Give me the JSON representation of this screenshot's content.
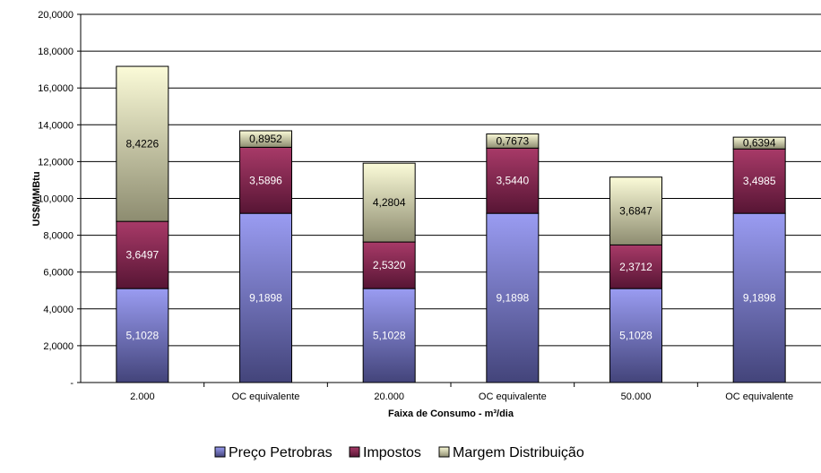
{
  "chart_data": {
    "type": "bar",
    "stacked": true,
    "categories": [
      "2.000",
      "OC equivalente",
      "20.000",
      "OC equivalente",
      "50.000",
      "OC equivalente"
    ],
    "series": [
      {
        "name": "Preço Petrobras",
        "values": [
          5.1028,
          9.1898,
          5.1028,
          9.1898,
          5.1028,
          9.1898
        ],
        "labels": [
          "5,1028",
          "9,1898",
          "5,1028",
          "9,1898",
          "5,1028",
          "9,1898"
        ],
        "color_top": "#9a9cf2",
        "color_bottom": "#43447a",
        "label_color": "#ffffff"
      },
      {
        "name": "Impostos",
        "values": [
          3.6497,
          3.5896,
          2.532,
          3.544,
          2.3712,
          3.4985
        ],
        "labels": [
          "3,6497",
          "3,5896",
          "2,5320",
          "3,5440",
          "2,3712",
          "3,4985"
        ],
        "color_top": "#a83a68",
        "color_bottom": "#571534",
        "label_color": "#ffffff"
      },
      {
        "name": "Margem Distribuição",
        "values": [
          8.4226,
          0.8952,
          4.2804,
          0.7673,
          3.6847,
          0.6394
        ],
        "labels": [
          "8,4226",
          "0,8952",
          "4,2804",
          "0,7673",
          "3,6847",
          "0,6394"
        ],
        "color_top": "#fbfbd8",
        "color_bottom": "#8d8c70",
        "label_color": "#000000"
      }
    ],
    "ylim": [
      0,
      20
    ],
    "ytick_values": [
      0,
      2,
      4,
      6,
      8,
      10,
      12,
      14,
      16,
      18,
      20
    ],
    "ytick_labels": [
      "-",
      "2,0000",
      "4,0000",
      "6,0000",
      "8,0000",
      "10,0000",
      "12,0000",
      "14,0000",
      "16,0000",
      "18,0000",
      "20,0000"
    ],
    "xlabel": "Faixa de Consumo - m³/dia",
    "ylabel": "US$/MMBtu",
    "grid": true,
    "legend_position": "bottom",
    "title": ""
  }
}
